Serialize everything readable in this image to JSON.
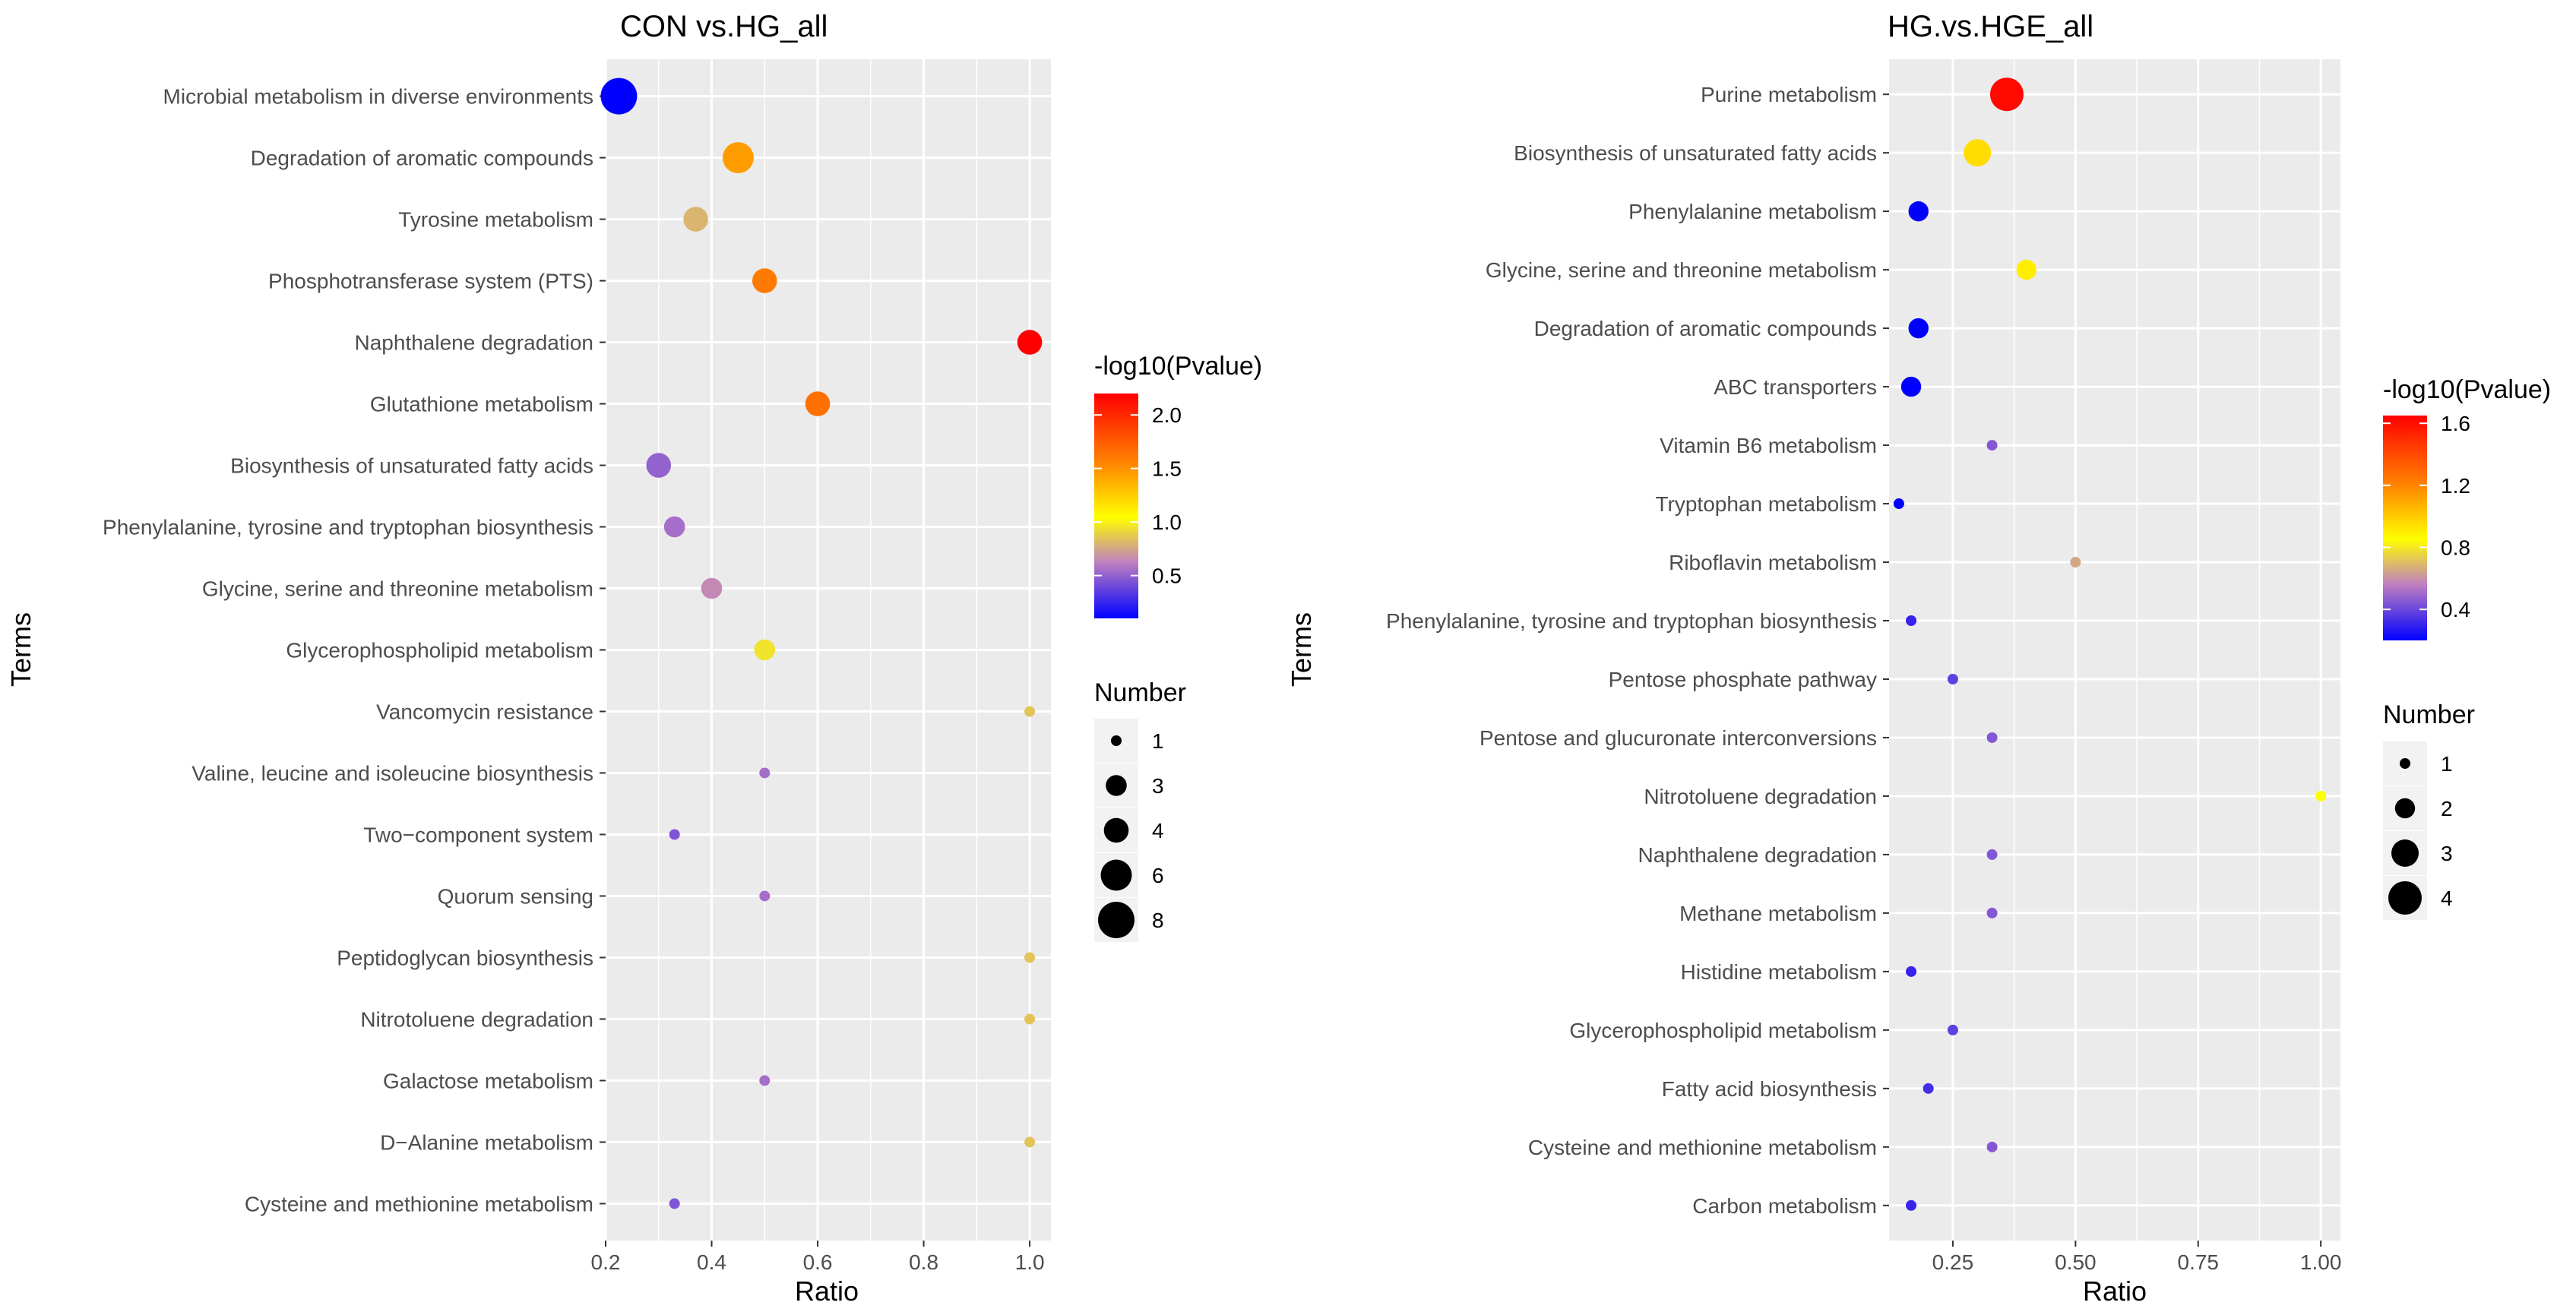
{
  "chart_data": [
    {
      "type": "scatter",
      "title": "CON vs.HG_all",
      "xlabel": "Ratio",
      "ylabel": "Terms",
      "xlim": [
        0.2,
        1.04
      ],
      "xticks": [
        0.2,
        0.4,
        0.6,
        0.8,
        1.0
      ],
      "xtick_labels": [
        "0.2",
        "0.4",
        "0.6",
        "0.8",
        "1.0"
      ],
      "color_legend": {
        "title": "-log10(Pvalue)",
        "min": 0.1,
        "max": 2.2,
        "ticks": [
          0.5,
          1.0,
          1.5,
          2.0
        ],
        "tick_labels": [
          "0.5",
          "1.0",
          "1.5",
          "2.0"
        ]
      },
      "size_legend": {
        "title": "Number",
        "values": [
          1,
          3,
          4,
          6,
          8
        ],
        "labels": [
          "1",
          "3",
          "4",
          "6",
          "8"
        ]
      },
      "size_range": [
        1,
        8
      ],
      "points": [
        {
          "term": "Microbial metabolism in diverse environments",
          "ratio": 0.225,
          "pvalue": 0.1,
          "number": 8
        },
        {
          "term": "Degradation of aromatic compounds",
          "ratio": 0.45,
          "pvalue": 1.45,
          "number": 6
        },
        {
          "term": "Tyrosine metabolism",
          "ratio": 0.37,
          "pvalue": 0.8,
          "number": 4
        },
        {
          "term": "Phosphotransferase system (PTS)",
          "ratio": 0.5,
          "pvalue": 1.6,
          "number": 4
        },
        {
          "term": "Naphthalene degradation",
          "ratio": 1.0,
          "pvalue": 2.2,
          "number": 4
        },
        {
          "term": "Glutathione metabolism",
          "ratio": 0.6,
          "pvalue": 1.65,
          "number": 4
        },
        {
          "term": "Biosynthesis of unsaturated fatty acids",
          "ratio": 0.3,
          "pvalue": 0.5,
          "number": 4
        },
        {
          "term": "Phenylalanine, tyrosine and tryptophan biosynthesis",
          "ratio": 0.33,
          "pvalue": 0.55,
          "number": 3
        },
        {
          "term": "Glycine, serine and threonine metabolism",
          "ratio": 0.4,
          "pvalue": 0.65,
          "number": 3
        },
        {
          "term": "Glycerophospholipid metabolism",
          "ratio": 0.5,
          "pvalue": 0.95,
          "number": 3
        },
        {
          "term": "Vancomycin resistance",
          "ratio": 1.0,
          "pvalue": 0.85,
          "number": 1
        },
        {
          "term": "Valine, leucine and isoleucine biosynthesis",
          "ratio": 0.5,
          "pvalue": 0.55,
          "number": 1
        },
        {
          "term": "Two−component system",
          "ratio": 0.33,
          "pvalue": 0.45,
          "number": 1
        },
        {
          "term": "Quorum sensing",
          "ratio": 0.5,
          "pvalue": 0.55,
          "number": 1
        },
        {
          "term": "Peptidoglycan biosynthesis",
          "ratio": 1.0,
          "pvalue": 0.85,
          "number": 1
        },
        {
          "term": "Nitrotoluene degradation",
          "ratio": 1.0,
          "pvalue": 0.85,
          "number": 1
        },
        {
          "term": "Galactose metabolism",
          "ratio": 0.5,
          "pvalue": 0.55,
          "number": 1
        },
        {
          "term": "D−Alanine metabolism",
          "ratio": 1.0,
          "pvalue": 0.85,
          "number": 1
        },
        {
          "term": "Cysteine and methionine metabolism",
          "ratio": 0.33,
          "pvalue": 0.45,
          "number": 1
        }
      ]
    },
    {
      "type": "scatter",
      "title": "HG.vs.HGE_all",
      "xlabel": "Ratio",
      "ylabel": "Terms",
      "xlim": [
        0.12,
        1.04
      ],
      "xticks": [
        0.25,
        0.5,
        0.75,
        1.0
      ],
      "xtick_labels": [
        "0.25",
        "0.50",
        "0.75",
        "1.00"
      ],
      "color_legend": {
        "title": "-log10(Pvalue)",
        "min": 0.2,
        "max": 1.65,
        "ticks": [
          0.4,
          0.8,
          1.2,
          1.6
        ],
        "tick_labels": [
          "0.4",
          "0.8",
          "1.2",
          "1.6"
        ]
      },
      "size_legend": {
        "title": "Number",
        "values": [
          1,
          2,
          3,
          4
        ],
        "labels": [
          "1",
          "2",
          "3",
          "4"
        ]
      },
      "size_range": [
        1,
        4
      ],
      "points": [
        {
          "term": "Purine metabolism",
          "ratio": 0.36,
          "pvalue": 1.62,
          "number": 4
        },
        {
          "term": "Biosynthesis of unsaturated fatty acids",
          "ratio": 0.3,
          "pvalue": 0.95,
          "number": 3
        },
        {
          "term": "Phenylalanine metabolism",
          "ratio": 0.18,
          "pvalue": 0.2,
          "number": 2
        },
        {
          "term": "Glycine, serine and threonine metabolism",
          "ratio": 0.4,
          "pvalue": 0.9,
          "number": 2
        },
        {
          "term": "Degradation of aromatic compounds",
          "ratio": 0.18,
          "pvalue": 0.2,
          "number": 2
        },
        {
          "term": "ABC transporters",
          "ratio": 0.165,
          "pvalue": 0.2,
          "number": 2
        },
        {
          "term": "Vitamin B6 metabolism",
          "ratio": 0.33,
          "pvalue": 0.45,
          "number": 1
        },
        {
          "term": "Tryptophan metabolism",
          "ratio": 0.14,
          "pvalue": 0.2,
          "number": 1
        },
        {
          "term": "Riboflavin metabolism",
          "ratio": 0.5,
          "pvalue": 0.65,
          "number": 1
        },
        {
          "term": "Phenylalanine, tyrosine and tryptophan biosynthesis",
          "ratio": 0.165,
          "pvalue": 0.3,
          "number": 1
        },
        {
          "term": "Pentose phosphate pathway",
          "ratio": 0.25,
          "pvalue": 0.38,
          "number": 1
        },
        {
          "term": "Pentose and glucuronate interconversions",
          "ratio": 0.33,
          "pvalue": 0.45,
          "number": 1
        },
        {
          "term": "Nitrotoluene degradation",
          "ratio": 1.0,
          "pvalue": 0.85,
          "number": 1
        },
        {
          "term": "Naphthalene degradation",
          "ratio": 0.33,
          "pvalue": 0.45,
          "number": 1
        },
        {
          "term": "Methane metabolism",
          "ratio": 0.33,
          "pvalue": 0.45,
          "number": 1
        },
        {
          "term": "Histidine metabolism",
          "ratio": 0.165,
          "pvalue": 0.3,
          "number": 1
        },
        {
          "term": "Glycerophospholipid metabolism",
          "ratio": 0.25,
          "pvalue": 0.38,
          "number": 1
        },
        {
          "term": "Fatty acid biosynthesis",
          "ratio": 0.2,
          "pvalue": 0.33,
          "number": 1
        },
        {
          "term": "Cysteine and methionine metabolism",
          "ratio": 0.33,
          "pvalue": 0.45,
          "number": 1
        },
        {
          "term": "Carbon metabolism",
          "ratio": 0.165,
          "pvalue": 0.3,
          "number": 1
        }
      ]
    }
  ],
  "colors": {
    "panel_bg": "#ebebeb",
    "grid": "#ffffff",
    "gradient": [
      "#0000ff",
      "#c080c0",
      "#ffff00",
      "#ff8000",
      "#ff0000"
    ]
  }
}
